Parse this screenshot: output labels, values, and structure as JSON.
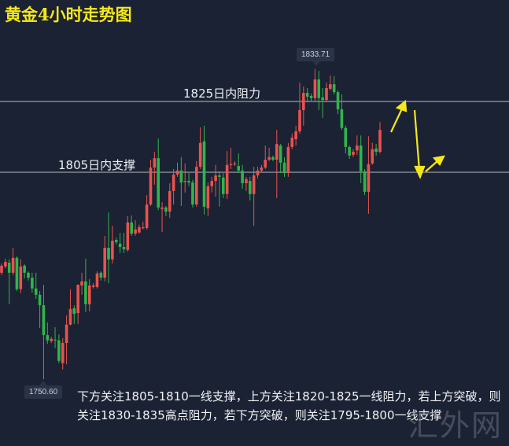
{
  "title": "黄金4小时走势图",
  "annotations": {
    "resistance": {
      "price": 1825,
      "label": "1825日内阻力"
    },
    "support": {
      "price": 1805,
      "label": "1805日内支撑"
    },
    "high_tag": "1833.71",
    "low_tag": "1750.60",
    "note": "下方关注1805-1810一线支撑，上方关注1820-1825一线阻力，若上方突破，则关注1830-1835高点阻力，若下方突破，则关注1795-1800一线支撑",
    "watermark": "汇外网"
  },
  "colors": {
    "background": "#1b2233",
    "up": "#e8534f",
    "down": "#2fb54a",
    "arrow": "#f4e81c",
    "level_line": "#b8bcc6"
  },
  "chart_data": {
    "type": "candlestick",
    "title": "黄金4小时走势图",
    "up_color": "red",
    "down_color": "green",
    "ylim": [
      1745,
      1840
    ],
    "grid": false,
    "high": 1833.71,
    "low": 1750.6,
    "horizontal_levels": [
      1825,
      1805
    ],
    "ohlc": [
      [
        1779.1,
        1781.6,
        1778.5,
        1781.0
      ],
      [
        1780.8,
        1782.9,
        1780.3,
        1782.0
      ],
      [
        1781.8,
        1782.7,
        1770.7,
        1779.1
      ],
      [
        1779.1,
        1785.8,
        1778.5,
        1783.1
      ],
      [
        1783.1,
        1783.5,
        1774.2,
        1774.7
      ],
      [
        1774.7,
        1782.7,
        1773.6,
        1780.8
      ],
      [
        1781.0,
        1781.4,
        1777.6,
        1779.1
      ],
      [
        1779.1,
        1779.5,
        1777.0,
        1777.8
      ],
      [
        1777.8,
        1779.1,
        1773.8,
        1774.9
      ],
      [
        1774.9,
        1779.1,
        1772.1,
        1773.2
      ],
      [
        1773.2,
        1774.2,
        1764.3,
        1770.4
      ],
      [
        1770.4,
        1775.9,
        1750.6,
        1762.4
      ],
      [
        1762.4,
        1765.8,
        1760.1,
        1761.0
      ],
      [
        1760.8,
        1762.0,
        1760.3,
        1761.4
      ],
      [
        1761.2,
        1764.5,
        1758.9,
        1761.0
      ],
      [
        1761.0,
        1762.6,
        1754.9,
        1755.5
      ],
      [
        1754.9,
        1761.6,
        1753.2,
        1760.3
      ],
      [
        1760.3,
        1767.7,
        1754.6,
        1765.2
      ],
      [
        1765.2,
        1774.7,
        1765.0,
        1769.4
      ],
      [
        1769.6,
        1770.4,
        1765.4,
        1768.1
      ],
      [
        1768.3,
        1776.0,
        1765.4,
        1775.9
      ],
      [
        1775.7,
        1779.1,
        1773.2,
        1776.8
      ],
      [
        1776.8,
        1782.9,
        1768.6,
        1770.7
      ],
      [
        1770.7,
        1777.4,
        1768.8,
        1775.7
      ],
      [
        1775.3,
        1776.3,
        1774.9,
        1775.7
      ],
      [
        1775.3,
        1779.5,
        1774.9,
        1778.9
      ],
      [
        1779.1,
        1779.5,
        1777.0,
        1777.8
      ],
      [
        1777.8,
        1789.0,
        1776.8,
        1785.8
      ],
      [
        1785.8,
        1795.3,
        1776.3,
        1782.7
      ],
      [
        1782.7,
        1791.7,
        1781.6,
        1787.7
      ],
      [
        1787.9,
        1788.5,
        1786.7,
        1787.3
      ],
      [
        1786.9,
        1789.8,
        1784.4,
        1786.0
      ],
      [
        1786.0,
        1789.8,
        1784.4,
        1785.4
      ],
      [
        1785.2,
        1794.3,
        1784.8,
        1792.6
      ],
      [
        1792.6,
        1794.5,
        1789.0,
        1789.6
      ],
      [
        1789.6,
        1793.2,
        1789.0,
        1790.7
      ],
      [
        1789.9,
        1792.0,
        1789.6,
        1791.3
      ],
      [
        1791.1,
        1792.8,
        1790.7,
        1791.3
      ],
      [
        1791.1,
        1799.9,
        1790.7,
        1797.4
      ],
      [
        1797.4,
        1809.4,
        1797.0,
        1807.3
      ],
      [
        1807.3,
        1811.5,
        1802.7,
        1809.8
      ],
      [
        1809.8,
        1815.1,
        1795.9,
        1796.6
      ],
      [
        1796.2,
        1798.0,
        1790.0,
        1796.6
      ],
      [
        1796.6,
        1797.0,
        1794.3,
        1795.5
      ],
      [
        1795.5,
        1803.1,
        1793.8,
        1801.0
      ],
      [
        1801.0,
        1806.9,
        1797.4,
        1805.4
      ],
      [
        1805.4,
        1808.6,
        1804.8,
        1806.5
      ],
      [
        1806.5,
        1810.1,
        1797.0,
        1803.3
      ],
      [
        1803.6,
        1808.4,
        1800.6,
        1803.7
      ],
      [
        1803.7,
        1805.8,
        1802.3,
        1803.3
      ],
      [
        1803.3,
        1804.0,
        1796.6,
        1797.4
      ],
      [
        1797.4,
        1809.0,
        1796.8,
        1807.5
      ],
      [
        1807.5,
        1818.1,
        1806.9,
        1813.9
      ],
      [
        1814.3,
        1818.5,
        1794.7,
        1796.8
      ],
      [
        1796.4,
        1803.3,
        1794.3,
        1802.3
      ],
      [
        1802.3,
        1804.8,
        1800.6,
        1803.7
      ],
      [
        1803.7,
        1808.0,
        1799.5,
        1805.2
      ],
      [
        1805.2,
        1806.3,
        1796.8,
        1804.8
      ],
      [
        1804.6,
        1805.8,
        1799.1,
        1800.2
      ],
      [
        1800.2,
        1811.7,
        1798.9,
        1808.0
      ],
      [
        1808.0,
        1812.6,
        1806.9,
        1808.2
      ],
      [
        1808.2,
        1809.0,
        1807.7,
        1808.4
      ],
      [
        1807.7,
        1811.1,
        1805.8,
        1806.5
      ],
      [
        1806.5,
        1808.0,
        1801.6,
        1803.1
      ],
      [
        1803.1,
        1804.8,
        1801.0,
        1804.2
      ],
      [
        1803.7,
        1804.8,
        1798.5,
        1800.2
      ],
      [
        1800.2,
        1807.5,
        1791.7,
        1805.2
      ],
      [
        1805.2,
        1807.5,
        1804.4,
        1806.5
      ],
      [
        1806.5,
        1808.0,
        1806.0,
        1807.3
      ],
      [
        1807.3,
        1813.2,
        1806.9,
        1809.4
      ],
      [
        1809.4,
        1812.6,
        1809.0,
        1810.1
      ],
      [
        1810.1,
        1810.5,
        1809.0,
        1809.4
      ],
      [
        1809.4,
        1817.4,
        1799.1,
        1813.6
      ],
      [
        1813.2,
        1813.6,
        1805.8,
        1808.6
      ],
      [
        1808.6,
        1810.1,
        1804.8,
        1805.8
      ],
      [
        1805.8,
        1813.9,
        1804.8,
        1812.8
      ],
      [
        1812.8,
        1816.4,
        1812.2,
        1815.3
      ],
      [
        1814.9,
        1818.5,
        1813.2,
        1817.0
      ],
      [
        1817.0,
        1830.1,
        1816.4,
        1822.7
      ],
      [
        1822.7,
        1829.0,
        1818.5,
        1827.3
      ],
      [
        1827.3,
        1828.6,
        1824.8,
        1826.3
      ],
      [
        1826.5,
        1827.1,
        1825.2,
        1825.9
      ],
      [
        1825.9,
        1833.71,
        1825.2,
        1830.9
      ],
      [
        1830.9,
        1833.2,
        1822.7,
        1825.9
      ],
      [
        1826.1,
        1828.6,
        1820.6,
        1825.4
      ],
      [
        1825.4,
        1830.1,
        1824.8,
        1828.6
      ],
      [
        1828.4,
        1832.0,
        1828.0,
        1829.6
      ],
      [
        1829.6,
        1831.8,
        1826.9,
        1827.5
      ],
      [
        1827.5,
        1828.0,
        1821.6,
        1822.9
      ],
      [
        1822.9,
        1826.9,
        1817.4,
        1817.9
      ],
      [
        1817.9,
        1818.5,
        1811.1,
        1812.8
      ],
      [
        1812.8,
        1813.2,
        1809.6,
        1810.5
      ],
      [
        1810.7,
        1812.2,
        1810.1,
        1811.5
      ],
      [
        1811.9,
        1815.9,
        1810.7,
        1813.2
      ],
      [
        1813.2,
        1815.9,
        1803.1,
        1806.3
      ],
      [
        1806.3,
        1806.9,
        1799.9,
        1800.8
      ],
      [
        1800.8,
        1815.7,
        1794.9,
        1808.2
      ],
      [
        1808.4,
        1813.9,
        1808.0,
        1812.2
      ],
      [
        1812.4,
        1813.6,
        1810.5,
        1811.5
      ],
      [
        1811.5,
        1819.5,
        1811.1,
        1817.4
      ]
    ]
  }
}
